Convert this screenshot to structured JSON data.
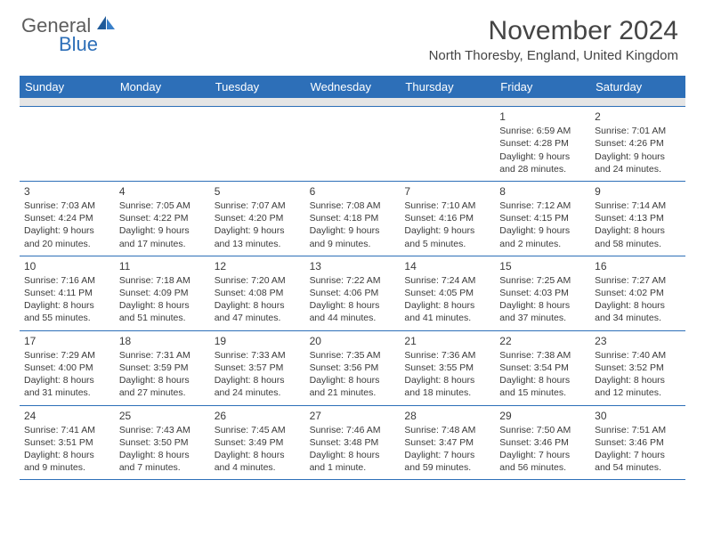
{
  "brand": {
    "text1": "General",
    "text2": "Blue",
    "color_general": "#5d5d5d",
    "color_blue": "#2d6fb8",
    "sail_color_dark": "#1f5a99",
    "sail_color_light": "#3a80c9"
  },
  "title": "November 2024",
  "location": "North Thoresby, England, United Kingdom",
  "colors": {
    "header_bg": "#2d6fb8",
    "header_text": "#ffffff",
    "row_border": "#2d6fb8",
    "spacer_bg": "#e5e5e5",
    "body_text": "#3a3a3a",
    "background": "#ffffff"
  },
  "typography": {
    "title_fontsize": 30,
    "location_fontsize": 15,
    "dayheader_fontsize": 13,
    "daynum_fontsize": 12,
    "cell_fontsize": 10.5
  },
  "layout": {
    "columns": 7,
    "rows": 5,
    "first_day_column": 5
  },
  "day_names": [
    "Sunday",
    "Monday",
    "Tuesday",
    "Wednesday",
    "Thursday",
    "Friday",
    "Saturday"
  ],
  "days": [
    {
      "n": 1,
      "sunrise": "6:59 AM",
      "sunset": "4:28 PM",
      "daylight": "9 hours and 28 minutes."
    },
    {
      "n": 2,
      "sunrise": "7:01 AM",
      "sunset": "4:26 PM",
      "daylight": "9 hours and 24 minutes."
    },
    {
      "n": 3,
      "sunrise": "7:03 AM",
      "sunset": "4:24 PM",
      "daylight": "9 hours and 20 minutes."
    },
    {
      "n": 4,
      "sunrise": "7:05 AM",
      "sunset": "4:22 PM",
      "daylight": "9 hours and 17 minutes."
    },
    {
      "n": 5,
      "sunrise": "7:07 AM",
      "sunset": "4:20 PM",
      "daylight": "9 hours and 13 minutes."
    },
    {
      "n": 6,
      "sunrise": "7:08 AM",
      "sunset": "4:18 PM",
      "daylight": "9 hours and 9 minutes."
    },
    {
      "n": 7,
      "sunrise": "7:10 AM",
      "sunset": "4:16 PM",
      "daylight": "9 hours and 5 minutes."
    },
    {
      "n": 8,
      "sunrise": "7:12 AM",
      "sunset": "4:15 PM",
      "daylight": "9 hours and 2 minutes."
    },
    {
      "n": 9,
      "sunrise": "7:14 AM",
      "sunset": "4:13 PM",
      "daylight": "8 hours and 58 minutes."
    },
    {
      "n": 10,
      "sunrise": "7:16 AM",
      "sunset": "4:11 PM",
      "daylight": "8 hours and 55 minutes."
    },
    {
      "n": 11,
      "sunrise": "7:18 AM",
      "sunset": "4:09 PM",
      "daylight": "8 hours and 51 minutes."
    },
    {
      "n": 12,
      "sunrise": "7:20 AM",
      "sunset": "4:08 PM",
      "daylight": "8 hours and 47 minutes."
    },
    {
      "n": 13,
      "sunrise": "7:22 AM",
      "sunset": "4:06 PM",
      "daylight": "8 hours and 44 minutes."
    },
    {
      "n": 14,
      "sunrise": "7:24 AM",
      "sunset": "4:05 PM",
      "daylight": "8 hours and 41 minutes."
    },
    {
      "n": 15,
      "sunrise": "7:25 AM",
      "sunset": "4:03 PM",
      "daylight": "8 hours and 37 minutes."
    },
    {
      "n": 16,
      "sunrise": "7:27 AM",
      "sunset": "4:02 PM",
      "daylight": "8 hours and 34 minutes."
    },
    {
      "n": 17,
      "sunrise": "7:29 AM",
      "sunset": "4:00 PM",
      "daylight": "8 hours and 31 minutes."
    },
    {
      "n": 18,
      "sunrise": "7:31 AM",
      "sunset": "3:59 PM",
      "daylight": "8 hours and 27 minutes."
    },
    {
      "n": 19,
      "sunrise": "7:33 AM",
      "sunset": "3:57 PM",
      "daylight": "8 hours and 24 minutes."
    },
    {
      "n": 20,
      "sunrise": "7:35 AM",
      "sunset": "3:56 PM",
      "daylight": "8 hours and 21 minutes."
    },
    {
      "n": 21,
      "sunrise": "7:36 AM",
      "sunset": "3:55 PM",
      "daylight": "8 hours and 18 minutes."
    },
    {
      "n": 22,
      "sunrise": "7:38 AM",
      "sunset": "3:54 PM",
      "daylight": "8 hours and 15 minutes."
    },
    {
      "n": 23,
      "sunrise": "7:40 AM",
      "sunset": "3:52 PM",
      "daylight": "8 hours and 12 minutes."
    },
    {
      "n": 24,
      "sunrise": "7:41 AM",
      "sunset": "3:51 PM",
      "daylight": "8 hours and 9 minutes."
    },
    {
      "n": 25,
      "sunrise": "7:43 AM",
      "sunset": "3:50 PM",
      "daylight": "8 hours and 7 minutes."
    },
    {
      "n": 26,
      "sunrise": "7:45 AM",
      "sunset": "3:49 PM",
      "daylight": "8 hours and 4 minutes."
    },
    {
      "n": 27,
      "sunrise": "7:46 AM",
      "sunset": "3:48 PM",
      "daylight": "8 hours and 1 minute."
    },
    {
      "n": 28,
      "sunrise": "7:48 AM",
      "sunset": "3:47 PM",
      "daylight": "7 hours and 59 minutes."
    },
    {
      "n": 29,
      "sunrise": "7:50 AM",
      "sunset": "3:46 PM",
      "daylight": "7 hours and 56 minutes."
    },
    {
      "n": 30,
      "sunrise": "7:51 AM",
      "sunset": "3:46 PM",
      "daylight": "7 hours and 54 minutes."
    }
  ]
}
